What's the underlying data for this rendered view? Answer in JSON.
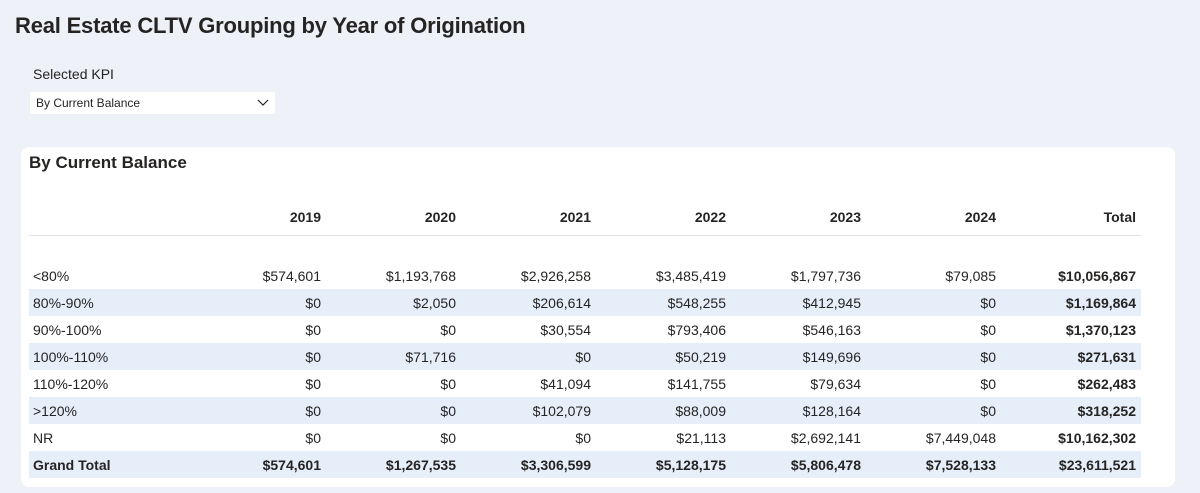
{
  "page": {
    "title": "Real Estate CLTV Grouping by Year of Origination"
  },
  "slicer": {
    "label": "Selected KPI",
    "selected_value": "By Current Balance"
  },
  "matrix": {
    "title": "By Current Balance",
    "columns": [
      "2019",
      "2020",
      "2021",
      "2022",
      "2023",
      "2024",
      "Total"
    ],
    "rows": [
      {
        "label": "<80%",
        "values": [
          "$574,601",
          "$1,193,768",
          "$2,926,258",
          "$3,485,419",
          "$1,797,736",
          "$79,085",
          "$10,056,867"
        ]
      },
      {
        "label": "80%-90%",
        "values": [
          "$0",
          "$2,050",
          "$206,614",
          "$548,255",
          "$412,945",
          "$0",
          "$1,169,864"
        ]
      },
      {
        "label": "90%-100%",
        "values": [
          "$0",
          "$0",
          "$30,554",
          "$793,406",
          "$546,163",
          "$0",
          "$1,370,123"
        ]
      },
      {
        "label": "100%-110%",
        "values": [
          "$0",
          "$71,716",
          "$0",
          "$50,219",
          "$149,696",
          "$0",
          "$271,631"
        ]
      },
      {
        "label": "110%-120%",
        "values": [
          "$0",
          "$0",
          "$41,094",
          "$141,755",
          "$79,634",
          "$0",
          "$262,483"
        ]
      },
      {
        "label": ">120%",
        "values": [
          "$0",
          "$0",
          "$102,079",
          "$88,009",
          "$128,164",
          "$0",
          "$318,252"
        ]
      },
      {
        "label": "NR",
        "values": [
          "$0",
          "$0",
          "$0",
          "$21,113",
          "$2,692,141",
          "$7,449,048",
          "$10,162,302"
        ]
      }
    ],
    "grand_total": {
      "label": "Grand Total",
      "values": [
        "$574,601",
        "$1,267,535",
        "$3,306,599",
        "$5,128,175",
        "$5,806,478",
        "$7,528,133",
        "$23,611,521"
      ]
    }
  },
  "colors": {
    "background": "#eef1f7",
    "card": "#ffffff",
    "row_band": "#e6eefa",
    "text": "#252423"
  },
  "icons": {
    "dropdown": "chevron-down-icon"
  }
}
